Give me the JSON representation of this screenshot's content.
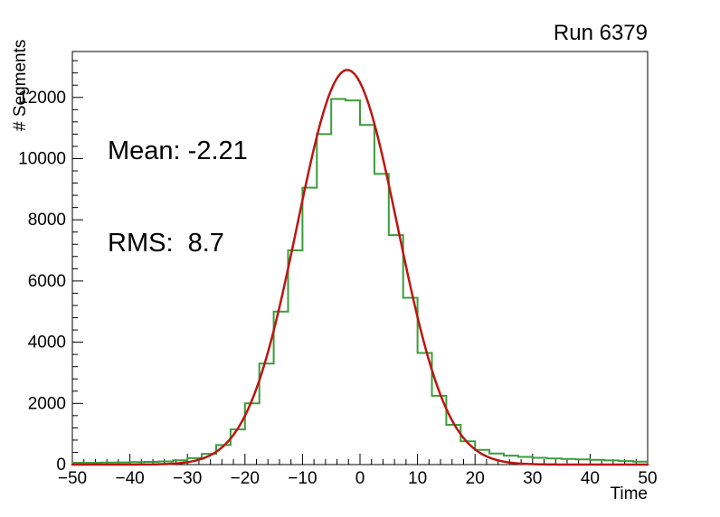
{
  "title": "Run 6379",
  "stats": {
    "mean": "Mean: -2.21",
    "rms": "RMS:  8.7"
  },
  "colors": {
    "histogram": "#3a9d3a",
    "fit": "#bb1612",
    "frame": "#000000",
    "text": "#000000",
    "background": "#ffffff"
  },
  "chart_data": {
    "type": "bar",
    "style": "step-histogram-with-gaussian-fit",
    "title": "Run 6379",
    "xlabel": "Time",
    "ylabel": "# Segments",
    "xlim": [
      -50,
      50
    ],
    "ylim": [
      0,
      13500
    ],
    "grid": false,
    "legend": false,
    "x_ticks": [
      -50,
      -40,
      -30,
      -20,
      -10,
      0,
      10,
      20,
      30,
      40,
      50
    ],
    "x_tick_labels": [
      "−50",
      "−40",
      "−30",
      "−20",
      "−10",
      "0",
      "10",
      "20",
      "30",
      "40",
      "50"
    ],
    "y_ticks": [
      0,
      2000,
      4000,
      6000,
      8000,
      10000,
      12000
    ],
    "y_tick_labels": [
      "0",
      "2000",
      "4000",
      "6000",
      "8000",
      "10000",
      "12000"
    ],
    "x_minor_step": 2,
    "y_minor_step": 400,
    "histogram": {
      "name": "time-segments-histogram",
      "bin_start": -50,
      "bin_width": 2.5,
      "counts": [
        60,
        60,
        65,
        70,
        80,
        90,
        105,
        140,
        210,
        350,
        640,
        1150,
        2000,
        3300,
        5000,
        7000,
        9050,
        10800,
        11950,
        11900,
        11100,
        9500,
        7500,
        5450,
        3650,
        2250,
        1300,
        760,
        480,
        360,
        290,
        250,
        220,
        200,
        185,
        170,
        155,
        135,
        115,
        95
      ]
    },
    "fit": {
      "function": "gaussian",
      "amplitude": 12900,
      "mean": -2.21,
      "sigma": 8.7
    },
    "annotations": {
      "mean_text": "Mean: -2.21",
      "rms_text": "RMS:  8.7"
    }
  }
}
